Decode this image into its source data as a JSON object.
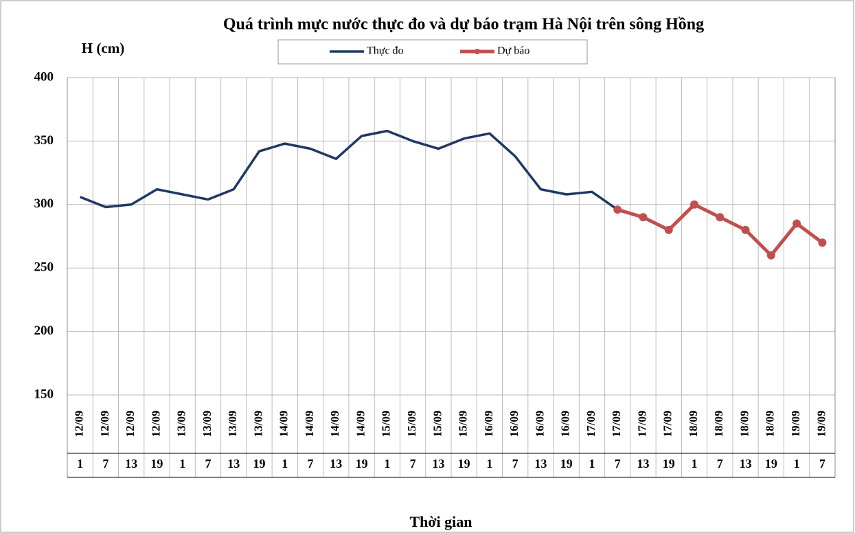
{
  "chart_data": {
    "type": "line",
    "title": "Quá trình  mực nước thực đo và dự báo trạm Hà Nội trên sông Hồng",
    "y_label": "H (cm)",
    "x_label": "Thời gian",
    "categories": [
      "12/09",
      "12/09",
      "12/09",
      "12/09",
      "13/09",
      "13/09",
      "13/09",
      "13/09",
      "14/09",
      "14/09",
      "14/09",
      "14/09",
      "15/09",
      "15/09",
      "15/09",
      "15/09",
      "16/09",
      "16/09",
      "16/09",
      "16/09",
      "17/09",
      "17/09",
      "17/09",
      "17/09",
      "18/09",
      "18/09",
      "18/09",
      "18/09",
      "19/09",
      "19/09"
    ],
    "hours": [
      "1",
      "7",
      "13",
      "19",
      "1",
      "7",
      "13",
      "19",
      "1",
      "7",
      "13",
      "19",
      "1",
      "7",
      "13",
      "19",
      "1",
      "7",
      "13",
      "19",
      "1",
      "7",
      "13",
      "19",
      "1",
      "7",
      "13",
      "19",
      "1",
      "7"
    ],
    "series": [
      {
        "name": "Thực đo",
        "color": "#1f3864",
        "markers": false,
        "values": [
          306,
          298,
          300,
          312,
          308,
          304,
          312,
          342,
          348,
          344,
          336,
          354,
          358,
          350,
          344,
          352,
          356,
          338,
          312,
          308,
          310,
          296,
          null,
          null,
          null,
          null,
          null,
          null,
          null,
          null
        ]
      },
      {
        "name": "Dự báo",
        "color": "#c0504d",
        "markers": true,
        "values": [
          null,
          null,
          null,
          null,
          null,
          null,
          null,
          null,
          null,
          null,
          null,
          null,
          null,
          null,
          null,
          null,
          null,
          null,
          null,
          null,
          null,
          296,
          290,
          280,
          300,
          290,
          280,
          260,
          285,
          270
        ]
      }
    ],
    "ylim": [
      150,
      400
    ],
    "yticks": [
      150,
      200,
      250,
      300,
      350,
      400
    ],
    "grid": true,
    "legend": "top"
  }
}
